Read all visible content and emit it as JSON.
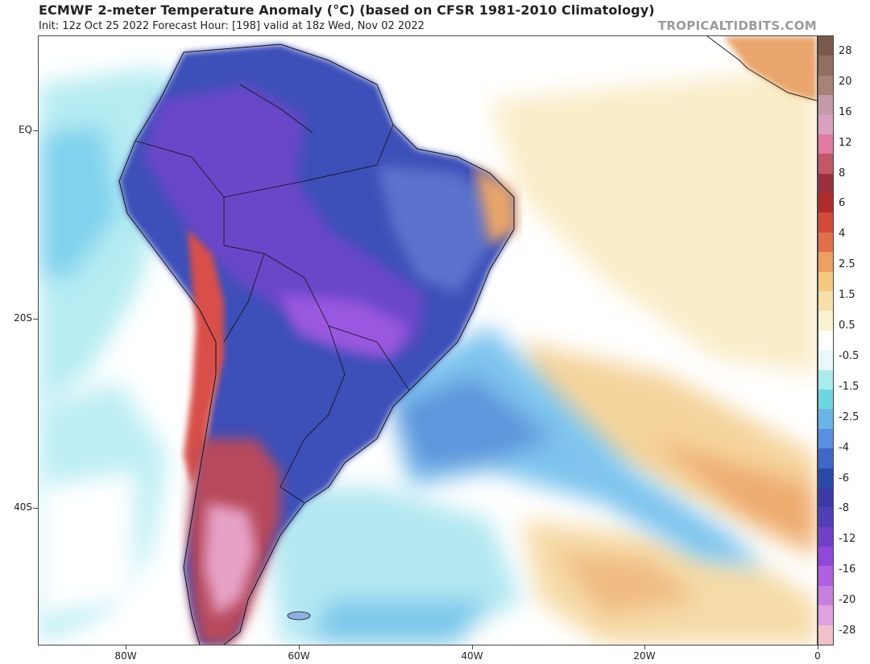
{
  "header": {
    "title": "ECMWF 2-meter Temperature Anomaly (°C) (based on CFSR 1981-2010 Climatology)",
    "subtitle": "Init: 12z Oct 25 2022   Forecast Hour: [198]   valid at 18z Wed, Nov 02 2022",
    "brand": "TROPICALTIDBITS.COM"
  },
  "axes": {
    "lat_labels": [
      "EQ",
      "20S",
      "40S"
    ],
    "lon_labels": [
      "80W",
      "60W",
      "40W",
      "20W",
      "0"
    ]
  },
  "colorbar": {
    "labels": [
      "28",
      "20",
      "16",
      "12",
      "8",
      "6",
      "4",
      "2.5",
      "1.5",
      "0.5",
      "-0.5",
      "-1.5",
      "-2.5",
      "-4",
      "-6",
      "-8",
      "-12",
      "-16",
      "-20",
      "-28"
    ],
    "colors": [
      "#7a5a4a",
      "#8f6f60",
      "#a78276",
      "#c49aa8",
      "#dba0c0",
      "#e07aa0",
      "#c05868",
      "#9b3040",
      "#b22b2b",
      "#d44b38",
      "#e07048",
      "#eea060",
      "#f5c880",
      "#f7e0a8",
      "#fbf3d0",
      "#ffffff",
      "#e8f8f8",
      "#a8ecec",
      "#6fd6e0",
      "#6ab4e6",
      "#5a8fe0",
      "#3d68c8",
      "#2a4aa8",
      "#3c3aa8",
      "#5040b8",
      "#7040c8",
      "#9048d8",
      "#b060e0",
      "#c880e0",
      "#e0a0e0",
      "#f2c0c8"
    ]
  },
  "map": {
    "region": "South America",
    "pattern_colors": {
      "ocean_neutral": "#ffffff",
      "ocean_warm": "#f7e3b0",
      "ocean_warmer": "#f3c486",
      "ocean_cool": "#a8eaf0",
      "ocean_cooler": "#6cc0ea",
      "land_cold": "#3c44b0",
      "land_very_cold": "#7a48d0",
      "land_extreme_cold": "#a060e0",
      "land_warm": "#d2584e",
      "land_hot": "#b04060",
      "land_very_hot": "#e8a0c8"
    }
  }
}
